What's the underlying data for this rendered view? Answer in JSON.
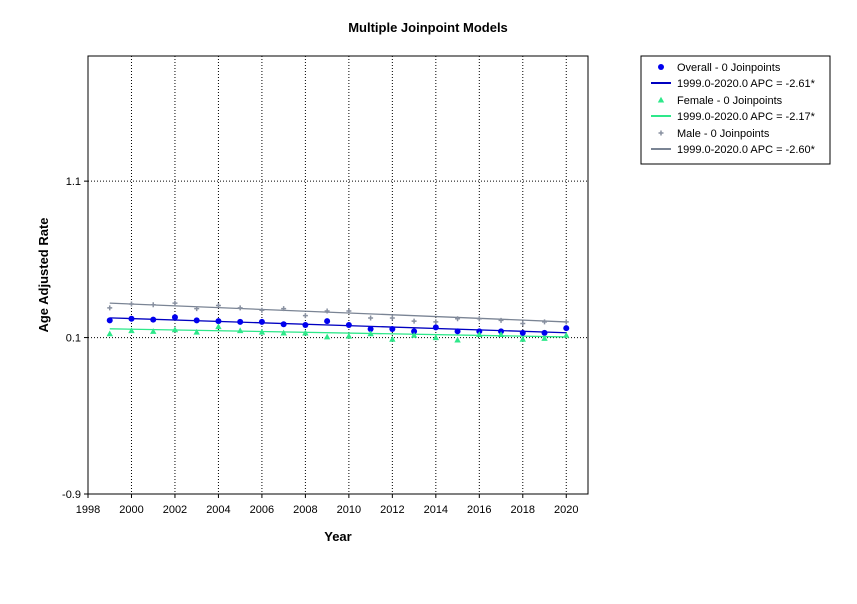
{
  "chart_data": {
    "type": "scatter",
    "title": "Multiple Joinpoint Models",
    "xlabel": "Year",
    "ylabel": "Age Adjusted Rate",
    "xlim": [
      1998,
      2021
    ],
    "ylim": [
      -0.9,
      1.9
    ],
    "xticks": [
      1998,
      2000,
      2002,
      2004,
      2006,
      2008,
      2010,
      2012,
      2014,
      2016,
      2018,
      2020
    ],
    "xtick_labels": [
      "1998",
      "2000",
      "2002",
      "2004",
      "2006",
      "2008",
      "2010",
      "2012",
      "2014",
      "2016",
      "2018",
      "2020"
    ],
    "yticks": [
      -0.9,
      0.1,
      1.1
    ],
    "ytick_labels": [
      "-0.9",
      "0.1",
      "1.1"
    ],
    "grid": true,
    "legend_position": "outside-right-top",
    "x": [
      1999,
      2000,
      2001,
      2002,
      2003,
      2004,
      2005,
      2006,
      2007,
      2008,
      2009,
      2010,
      2011,
      2012,
      2013,
      2014,
      2015,
      2016,
      2017,
      2018,
      2019,
      2020
    ],
    "series": [
      {
        "name": "Overall - 0 Joinpoints",
        "color": "#0000ee",
        "marker": "circle",
        "values": [
          0.21,
          0.22,
          0.215,
          0.23,
          0.21,
          0.205,
          0.2,
          0.2,
          0.185,
          0.18,
          0.205,
          0.18,
          0.155,
          0.155,
          0.14,
          0.165,
          0.14,
          0.14,
          0.14,
          0.13,
          0.13,
          0.16
        ],
        "fit_label": "1999.0-2020.0 APC  =  -2.61*",
        "fit_color": "#0000c0",
        "fit": [
          0.226,
          0.131
        ]
      },
      {
        "name": "Female - 0 Joinpoints",
        "color": "#2ee88a",
        "marker": "triangle",
        "values": [
          0.125,
          0.145,
          0.14,
          0.15,
          0.135,
          0.17,
          0.145,
          0.135,
          0.13,
          0.13,
          0.105,
          0.11,
          0.125,
          0.09,
          0.115,
          0.1,
          0.085,
          0.12,
          0.12,
          0.09,
          0.095,
          0.115
        ],
        "fit_label": "1999.0-2020.0 APC  =  -2.17*",
        "fit_color": "#2ee88a",
        "fit": [
          0.156,
          0.104
        ]
      },
      {
        "name": "Male - 0 Joinpoints",
        "color": "#8890a0",
        "marker": "plus",
        "values": [
          0.29,
          0.315,
          0.31,
          0.32,
          0.285,
          0.305,
          0.29,
          0.275,
          0.285,
          0.24,
          0.27,
          0.27,
          0.225,
          0.225,
          0.205,
          0.2,
          0.22,
          0.22,
          0.21,
          0.19,
          0.2,
          0.2
        ],
        "fit_label": "1999.0-2020.0 APC  =  -2.60*",
        "fit_color": "#7a8494",
        "fit": [
          0.32,
          0.2
        ]
      }
    ]
  }
}
